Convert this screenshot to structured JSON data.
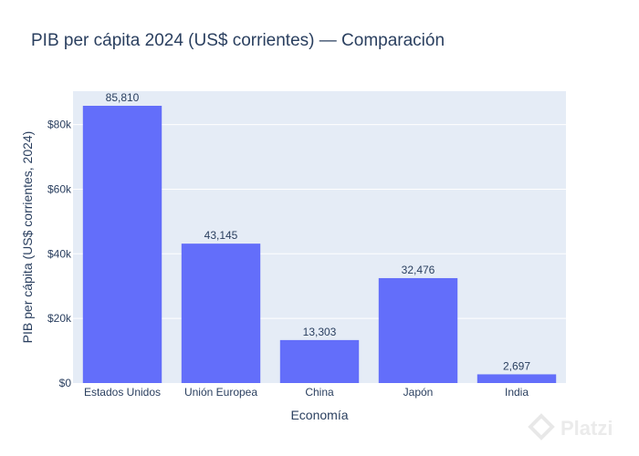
{
  "chart_data": {
    "type": "bar",
    "title": "PIB per cápita 2024 (US$ corrientes) — Comparación",
    "xlabel": "Economía",
    "ylabel": "PIB per cápita (US$ corrientes, 2024)",
    "categories": [
      "Estados Unidos",
      "Unión Europea",
      "China",
      "Japón",
      "India"
    ],
    "values": [
      85810,
      43145,
      13303,
      32476,
      2697
    ],
    "value_labels": [
      "85,810",
      "43,145",
      "13,303",
      "32,476",
      "2,697"
    ],
    "ylim": [
      0,
      90327
    ],
    "yticks": [
      0,
      20000,
      40000,
      60000,
      80000
    ],
    "ytick_labels": [
      "$0",
      "$20k",
      "$40k",
      "$60k",
      "$80k"
    ],
    "grid": true,
    "legend": "none",
    "colors": {
      "bar": "#636efa",
      "plot_background": "#e5ecf6",
      "grid": "#ffffff",
      "text": "#2a3f5f"
    }
  },
  "watermark": {
    "text": "Platzi",
    "icon": "platzi-logo-icon"
  }
}
